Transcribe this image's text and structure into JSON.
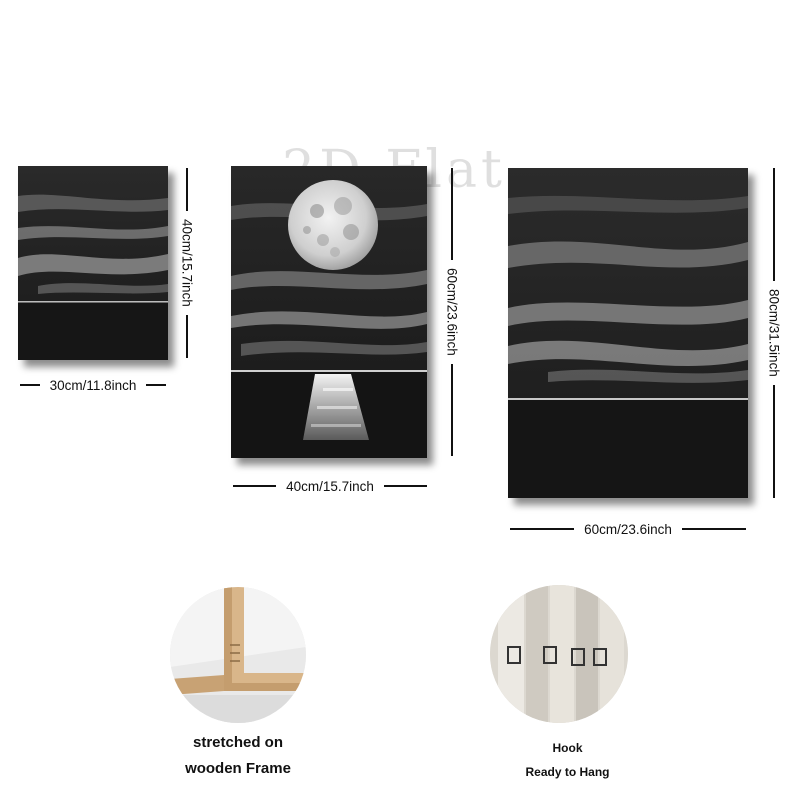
{
  "watermark": "2D Flat",
  "panels": {
    "small": {
      "width_label": "30cm/11.8inch",
      "height_label": "40cm/15.7inch"
    },
    "medium": {
      "width_label": "40cm/15.7inch",
      "height_label": "60cm/23.6inch"
    },
    "large": {
      "width_label": "60cm/23.6inch",
      "height_label": "80cm/31.5inch"
    }
  },
  "features": {
    "frame": {
      "line1": "stretched on",
      "line2": "wooden Frame"
    },
    "hook": {
      "line1": "Hook",
      "line2": "Ready to Hang"
    }
  },
  "colors": {
    "canvas_dark": "#1c1c1c",
    "cloud_grey": "#8a8a8a",
    "wood": "#d9b68a"
  }
}
